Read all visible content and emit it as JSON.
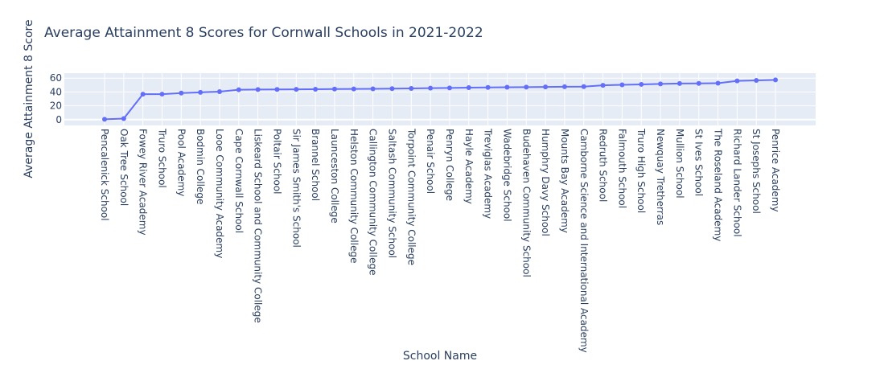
{
  "chart_data": {
    "type": "line",
    "title": "Average Attainment 8 Scores for Cornwall Schools in 2021-2022",
    "xlabel": "School Name",
    "ylabel": "Average Attainment 8 Score",
    "categories": [
      "Pencalenick School",
      "Oak Tree School",
      "Fowey River Academy",
      "Truro School",
      "Pool Academy",
      "Bodmin College",
      "Looe Community Academy",
      "Cape Cornwall School",
      "Liskeard School and Community College",
      "Poltair School",
      "Sir James Smith's School",
      "Brannel School",
      "Launceston College",
      "Helston Community College",
      "Callington Community College",
      "Saltash Community School",
      "Torpoint Community College",
      "Penair School",
      "Penryn College",
      "Hayle Academy",
      "Treviglas Academy",
      "Wadebridge School",
      "Budehaven Community School",
      "Humphry Davy School",
      "Mounts Bay Academy",
      "Camborne Science and International Academy",
      "Redruth School",
      "Falmouth School",
      "Truro High School",
      "Newquay Tretherras",
      "Mullion School",
      "St Ives School",
      "The Roseland Academy",
      "Richard Lander School",
      "St Josephs School",
      "Penrice Academy"
    ],
    "series": [
      {
        "values": [
          0.5,
          1.5,
          36.8,
          36.9,
          38.4,
          39.5,
          40.5,
          43.2,
          43.5,
          43.6,
          43.8,
          44.0,
          44.3,
          44.4,
          44.5,
          44.8,
          45.1,
          45.6,
          45.9,
          46.3,
          46.6,
          46.8,
          47.0,
          47.3,
          47.6,
          47.8,
          49.6,
          50.4,
          51.0,
          51.7,
          52.2,
          52.4,
          52.7,
          56.0,
          56.8,
          57.5
        ]
      }
    ],
    "ylim": [
      -6,
      66
    ],
    "yticks": [
      0,
      20,
      40,
      60
    ],
    "grid": true,
    "colors": {
      "line": "#636efa",
      "plot_bg": "#e5ecf6",
      "grid": "#ffffff",
      "text": "#2a3f5f"
    }
  }
}
